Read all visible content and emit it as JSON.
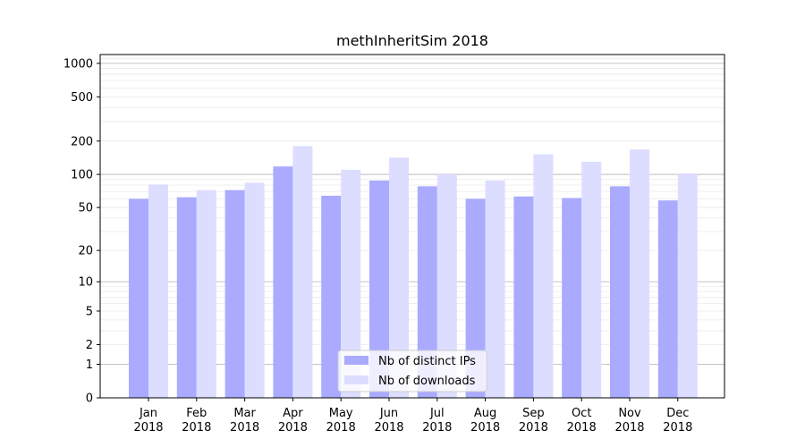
{
  "chart_data": {
    "type": "bar",
    "title": "methInheritSim 2018",
    "xlabel": "",
    "ylabel": "",
    "y_scale": "log1p",
    "ylim": [
      0,
      1200
    ],
    "y_ticks": [
      0,
      1,
      2,
      5,
      10,
      20,
      50,
      100,
      200,
      500,
      1000
    ],
    "y_tick_labels": [
      "0",
      "1",
      "2",
      "5",
      "10",
      "20",
      "50",
      "100",
      "200",
      "500",
      "1000"
    ],
    "categories": [
      [
        "Jan",
        "2018"
      ],
      [
        "Feb",
        "2018"
      ],
      [
        "Mar",
        "2018"
      ],
      [
        "Apr",
        "2018"
      ],
      [
        "May",
        "2018"
      ],
      [
        "Jun",
        "2018"
      ],
      [
        "Jul",
        "2018"
      ],
      [
        "Aug",
        "2018"
      ],
      [
        "Sep",
        "2018"
      ],
      [
        "Oct",
        "2018"
      ],
      [
        "Nov",
        "2018"
      ],
      [
        "Dec",
        "2018"
      ]
    ],
    "series": [
      {
        "name": "Nb of distinct IPs",
        "color": "#aaaaff",
        "values": [
          60,
          62,
          72,
          118,
          64,
          88,
          78,
          60,
          63,
          61,
          78,
          58
        ]
      },
      {
        "name": "Nb of downloads",
        "color": "#ddddff",
        "values": [
          81,
          72,
          84,
          180,
          110,
          142,
          100,
          88,
          152,
          130,
          168,
          102
        ]
      }
    ],
    "grid": true,
    "legend_position": "bottom-center"
  }
}
